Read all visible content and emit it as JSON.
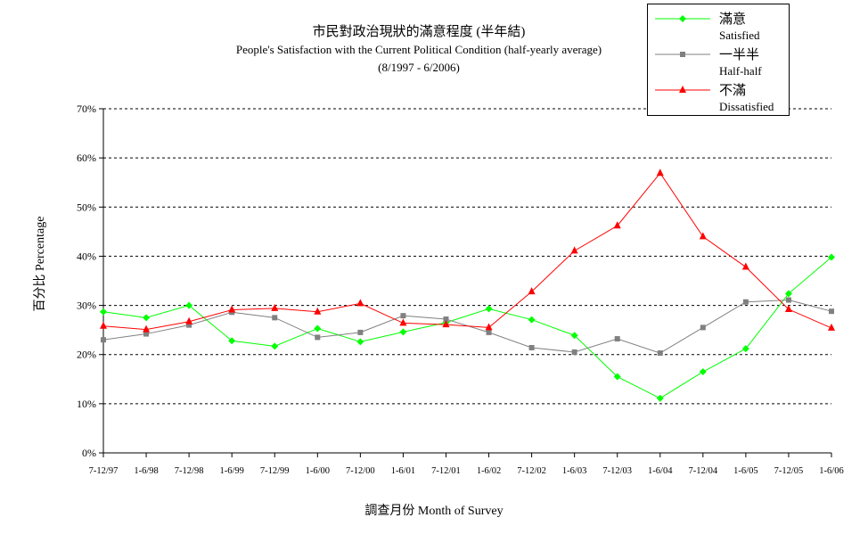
{
  "chart_data": {
    "type": "line",
    "title": "市民對政治現狀的滿意程度 (半年結)",
    "subtitle": "People's Satisfaction with the Current Political Condition (half-yearly average)",
    "subtitle2": "(8/1997 - 6/2006)",
    "xlabel": "調查月份 Month of Survey",
    "ylabel": "百分比 Percentage",
    "ylim": [
      0,
      70
    ],
    "yticks": [
      "0%",
      "10%",
      "20%",
      "30%",
      "40%",
      "50%",
      "60%",
      "70%"
    ],
    "grid": "horizontal dashed",
    "legend_position": "top-right",
    "categories": [
      "7-12/97",
      "1-6/98",
      "7-12/98",
      "1-6/99",
      "7-12/99",
      "1-6/00",
      "7-12/00",
      "1-6/01",
      "7-12/01",
      "1-6/02",
      "7-12/02",
      "1-6/03",
      "7-12/03",
      "1-6/04",
      "7-12/04",
      "1-6/05",
      "7-12/05",
      "1-6/06"
    ],
    "series": [
      {
        "name": "滿意",
        "name_en": "Satisfied",
        "color": "#00ff00",
        "marker": "diamond",
        "values": [
          28.7,
          27.5,
          30.0,
          22.8,
          21.7,
          25.3,
          22.6,
          24.6,
          26.5,
          29.3,
          27.1,
          23.9,
          15.5,
          11.1,
          16.5,
          21.2,
          32.4,
          39.8
        ]
      },
      {
        "name": "一半半",
        "name_en": "Half-half",
        "color": "#808080",
        "marker": "square",
        "values": [
          23.0,
          24.2,
          26.0,
          28.6,
          27.5,
          23.5,
          24.5,
          27.9,
          27.2,
          24.5,
          21.4,
          20.5,
          23.2,
          20.3,
          25.5,
          30.7,
          31.1,
          28.8
        ]
      },
      {
        "name": "不滿",
        "name_en": "Dissatisfied",
        "color": "#ff0000",
        "marker": "triangle",
        "values": [
          25.8,
          25.1,
          26.7,
          29.1,
          29.4,
          28.7,
          30.4,
          26.4,
          26.1,
          25.5,
          32.8,
          41.1,
          46.2,
          56.9,
          44.0,
          37.8,
          29.2,
          25.4
        ]
      }
    ]
  }
}
